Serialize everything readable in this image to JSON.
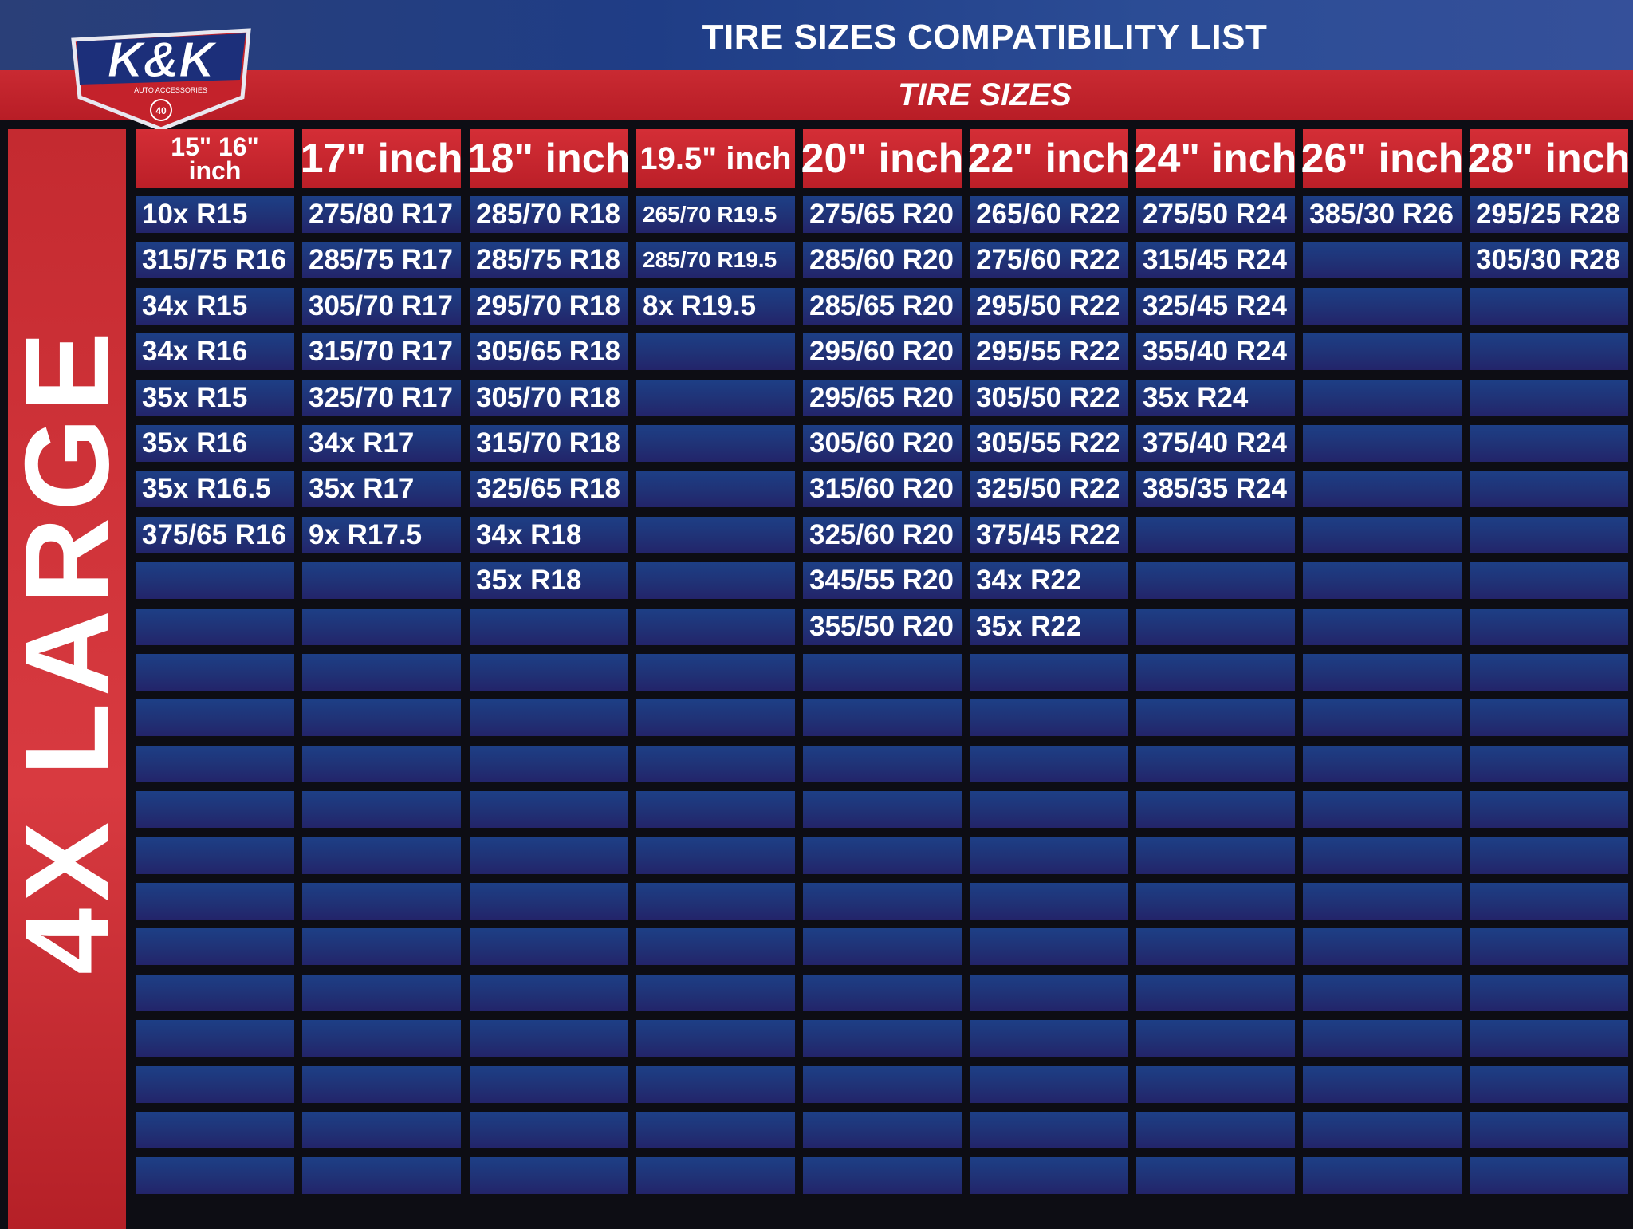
{
  "header": {
    "title": "TIRE SIZES COMPATIBILITY LIST",
    "subtitle": "TIRE SIZES",
    "brand": "K&K",
    "brand_tagline": "AUTO ACCESSORIES",
    "badge": "40"
  },
  "side_label": "4X LARGE",
  "colors": {
    "blue": "#1f3a82",
    "red": "#c4222b",
    "white": "#ffffff",
    "black": "#0d0d14"
  },
  "table": {
    "row_count": 22,
    "columns": [
      {
        "header_top": "15\" 16\"",
        "header_bottom": "inch",
        "cells": [
          "10x R15",
          "315/75 R16",
          "34x R15",
          "34x R16",
          "35x R15",
          "35x R16",
          "35x R16.5",
          "375/65 R16"
        ]
      },
      {
        "header": "17\" inch",
        "cells": [
          "275/80 R17",
          "285/75 R17",
          "305/70 R17",
          "315/70 R17",
          "325/70 R17",
          "34x R17",
          "35x R17",
          "9x R17.5"
        ]
      },
      {
        "header": "18\" inch",
        "cells": [
          "285/70 R18",
          "285/75 R18",
          "295/70 R18",
          "305/65 R18",
          "305/70 R18",
          "315/70 R18",
          "325/65 R18",
          "34x R18",
          "35x R18"
        ]
      },
      {
        "header": "19.5\" inch",
        "cells": [
          "265/70 R19.5",
          "285/70 R19.5",
          "8x R19.5"
        ]
      },
      {
        "header": "20\" inch",
        "cells": [
          "275/65 R20",
          "285/60 R20",
          "285/65 R20",
          "295/60 R20",
          "295/65 R20",
          "305/60 R20",
          "315/60 R20",
          "325/60 R20",
          "345/55 R20",
          "355/50 R20"
        ]
      },
      {
        "header": "22\" inch",
        "cells": [
          "265/60 R22",
          "275/60 R22",
          "295/50 R22",
          "295/55 R22",
          "305/50 R22",
          "305/55 R22",
          "325/50 R22",
          "375/45 R22",
          "34x R22",
          "35x R22"
        ]
      },
      {
        "header": "24\" inch",
        "cells": [
          "275/50 R24",
          "315/45 R24",
          "325/45 R24",
          "355/40 R24",
          "35x R24",
          "375/40 R24",
          "385/35 R24"
        ]
      },
      {
        "header": "26\" inch",
        "cells": [
          "385/30 R26"
        ]
      },
      {
        "header": "28\" inch",
        "cells": [
          "295/25 R28",
          "305/30 R28"
        ]
      }
    ]
  }
}
